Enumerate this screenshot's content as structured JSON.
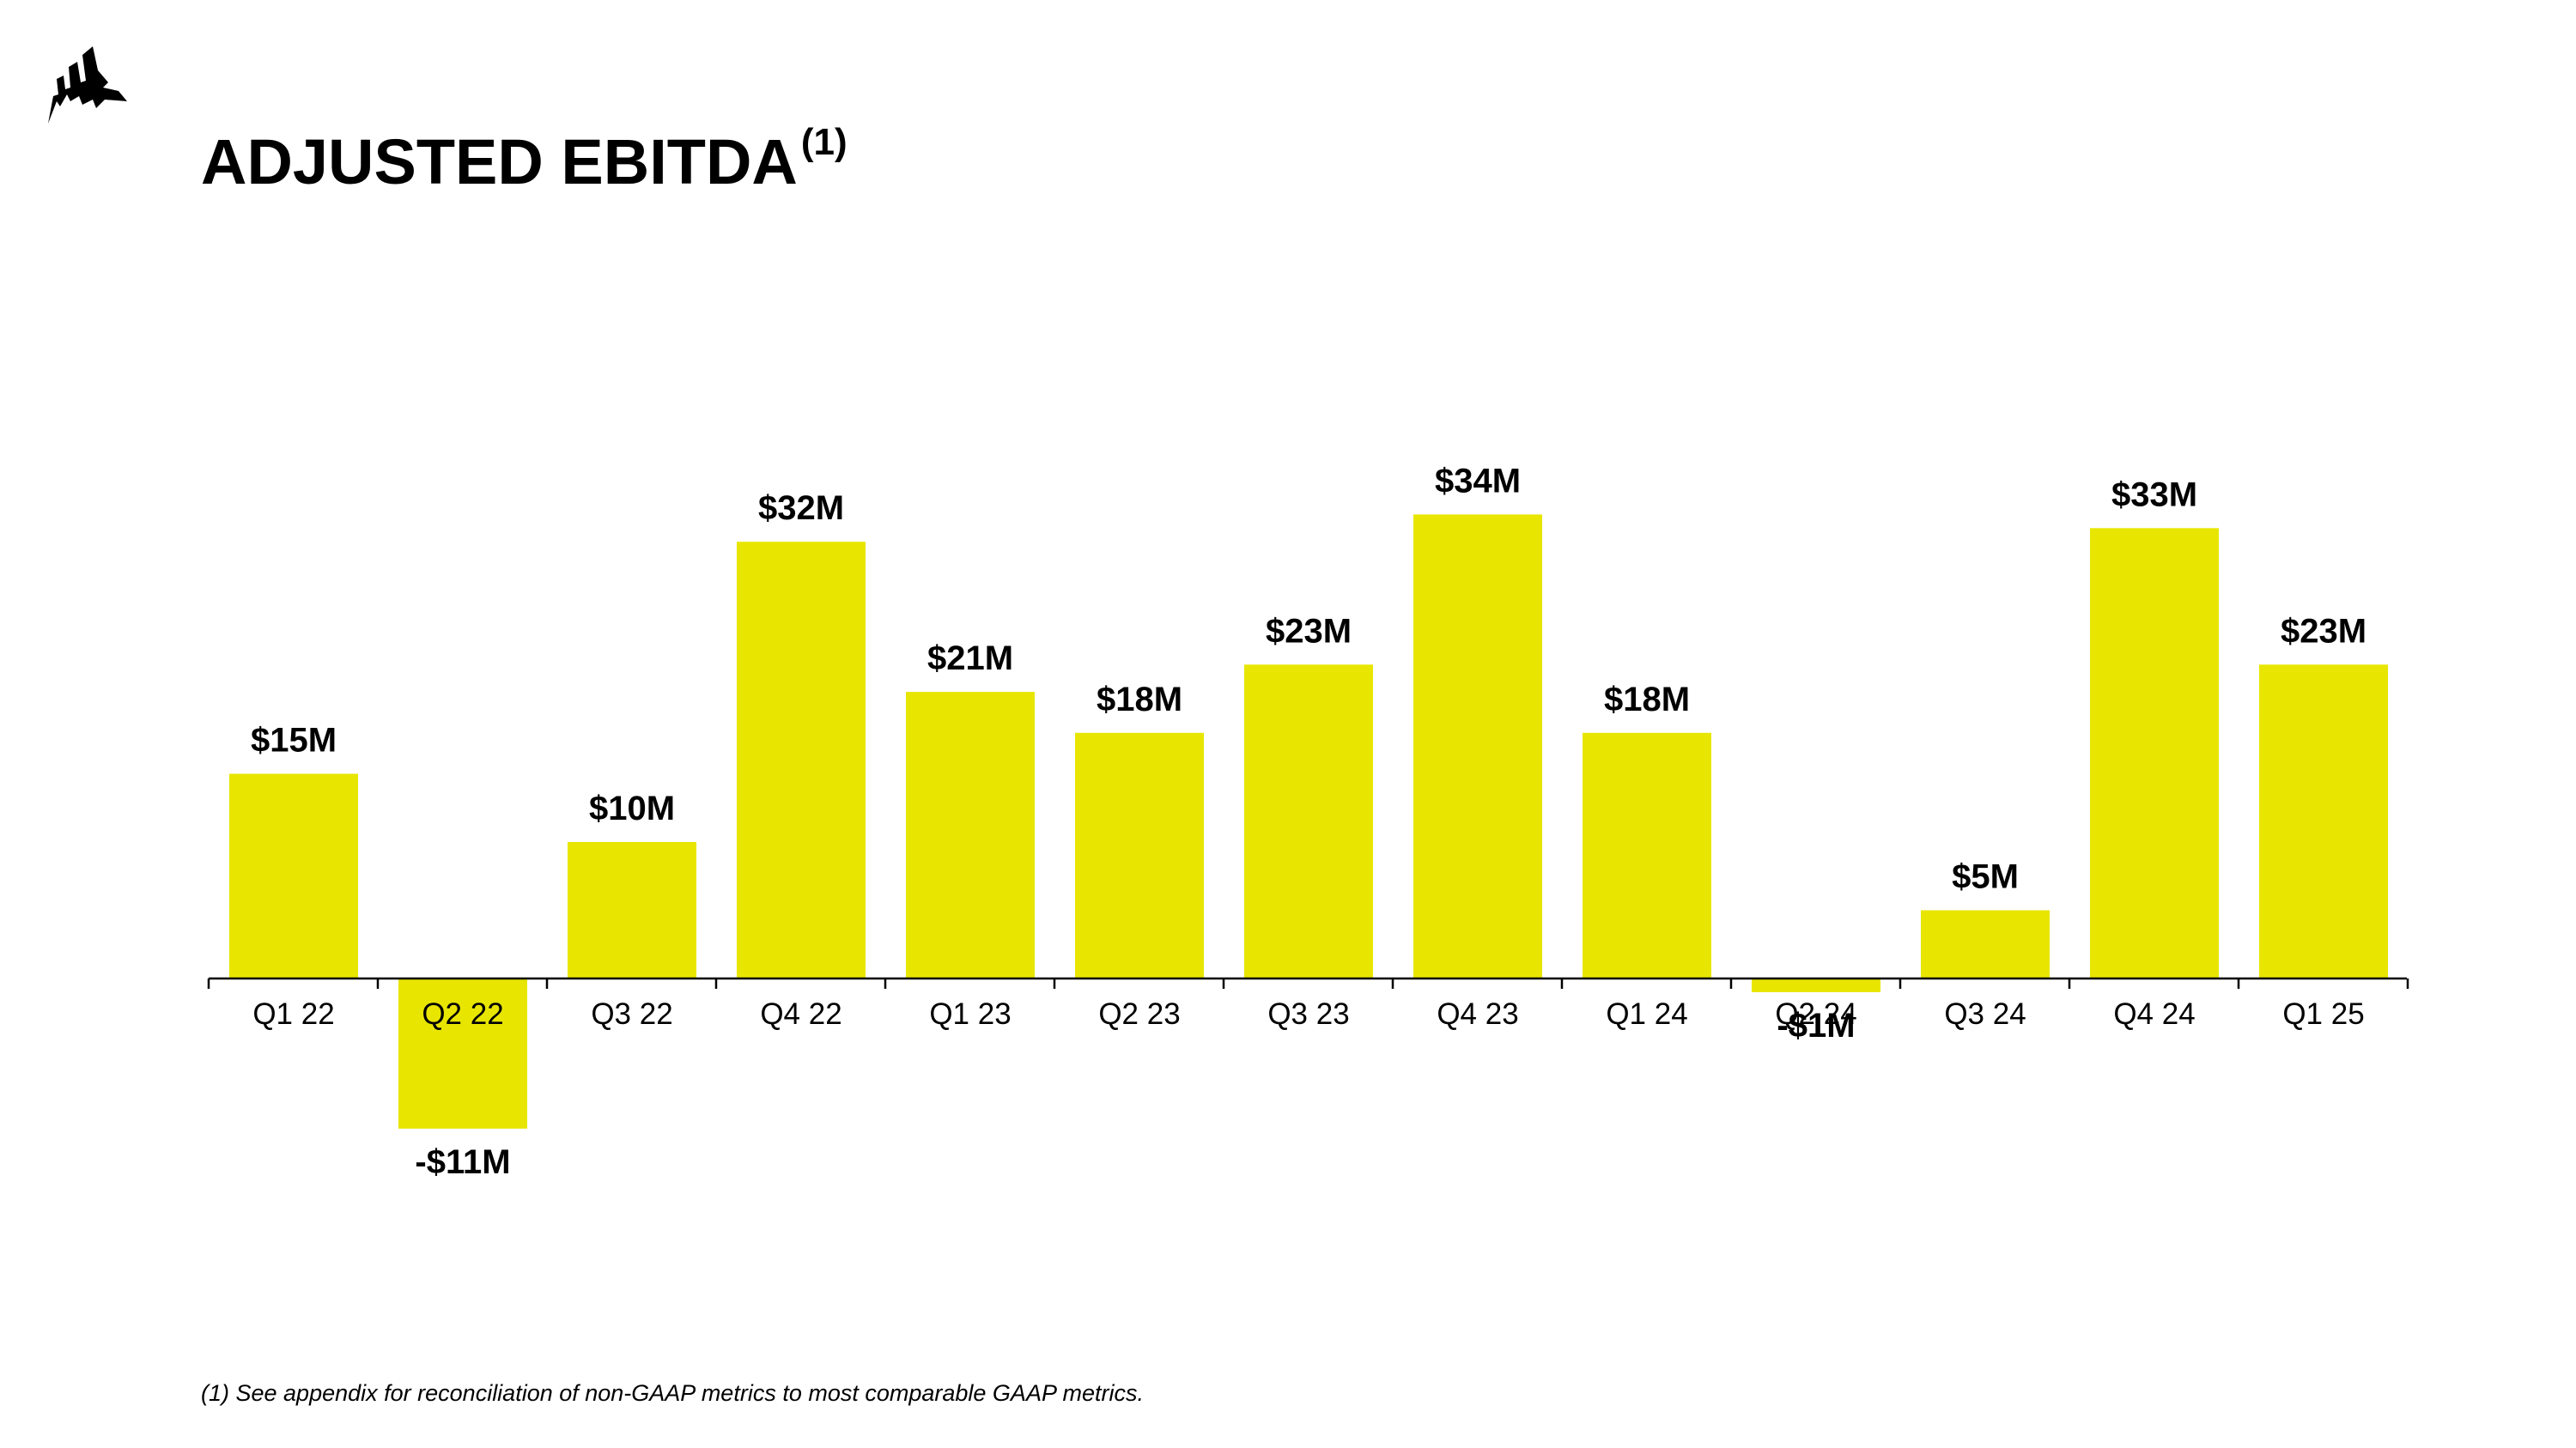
{
  "logo": {
    "icon": "sail-logo-icon",
    "color": "#000000"
  },
  "title": {
    "text": "ADJUSTED EBITDA",
    "superscript": "(1)"
  },
  "footnote": "(1) See appendix for reconciliation of non-GAAP metrics to most comparable GAAP metrics.",
  "colors": {
    "bar": "#E8E600",
    "axis": "#000000",
    "text": "#000000"
  },
  "chart_data": {
    "type": "bar",
    "categories": [
      "Q1 22",
      "Q2 22",
      "Q3 22",
      "Q4 22",
      "Q1 23",
      "Q2 23",
      "Q3 23",
      "Q4 23",
      "Q1 24",
      "Q2 24",
      "Q3 24",
      "Q4 24",
      "Q1 25"
    ],
    "values": [
      15,
      -11,
      10,
      32,
      21,
      18,
      23,
      34,
      18,
      -1,
      5,
      33,
      23
    ],
    "data_labels": [
      "$15M",
      "-$11M",
      "$10M",
      "$32M",
      "$21M",
      "$18M",
      "$23M",
      "$34M",
      "$18M",
      "-$1M",
      "$5M",
      "$33M",
      "$23M"
    ],
    "title": "ADJUSTED EBITDA",
    "xlabel": "",
    "ylabel": "",
    "ylim": [
      -11,
      34
    ],
    "grid": false,
    "legend": "none"
  }
}
